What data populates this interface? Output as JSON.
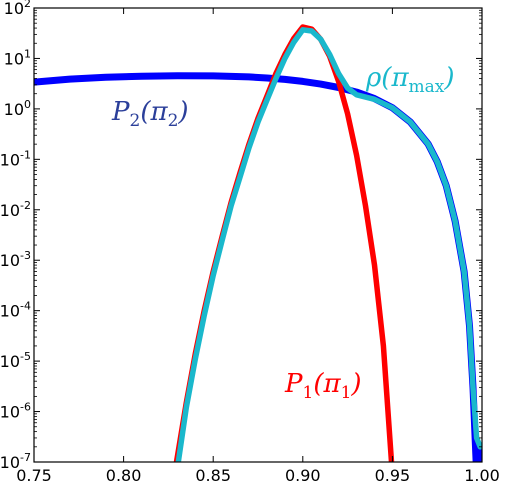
{
  "chart_data": {
    "type": "line",
    "title": "",
    "xlabel": "",
    "ylabel": "",
    "xlim": [
      0.75,
      1.0
    ],
    "ylim_log10": [
      -7,
      2
    ],
    "yscale": "log",
    "grid": false,
    "x_ticks": [
      {
        "value": 0.75,
        "label": "0.75"
      },
      {
        "value": 0.8,
        "label": "0.80"
      },
      {
        "value": 0.85,
        "label": "0.85"
      },
      {
        "value": 0.9,
        "label": "0.90"
      },
      {
        "value": 0.95,
        "label": "0.95"
      },
      {
        "value": 1.0,
        "label": "1.00"
      }
    ],
    "y_ticks": [
      {
        "exp": 2,
        "base": "10",
        "power": "2"
      },
      {
        "exp": 1,
        "base": "10",
        "power": "1"
      },
      {
        "exp": 0,
        "base": "10",
        "power": "0"
      },
      {
        "exp": -1,
        "base": "10",
        "power": "-1"
      },
      {
        "exp": -2,
        "base": "10",
        "power": "-2"
      },
      {
        "exp": -3,
        "base": "10",
        "power": "-3"
      },
      {
        "exp": -4,
        "base": "10",
        "power": "-4"
      },
      {
        "exp": -5,
        "base": "10",
        "power": "-5"
      },
      {
        "exp": -6,
        "base": "10",
        "power": "-6"
      },
      {
        "exp": -7,
        "base": "10",
        "power": "-7"
      }
    ],
    "series": [
      {
        "key": "p2",
        "color": "#0000ff",
        "label_main": "P",
        "label_sub": "2",
        "label_arg": "(π",
        "label_arg_sub": "2",
        "label_close": ")",
        "label_color": "#2b3f9a",
        "points": [
          [
            0.75,
            3.4
          ],
          [
            0.77,
            3.9
          ],
          [
            0.79,
            4.25
          ],
          [
            0.81,
            4.45
          ],
          [
            0.83,
            4.55
          ],
          [
            0.85,
            4.5
          ],
          [
            0.87,
            4.3
          ],
          [
            0.88,
            4.1
          ],
          [
            0.89,
            3.85
          ],
          [
            0.9,
            3.5
          ],
          [
            0.91,
            3.1
          ],
          [
            0.92,
            2.65
          ],
          [
            0.93,
            2.15
          ],
          [
            0.94,
            1.6
          ],
          [
            0.95,
            1.05
          ],
          [
            0.96,
            0.55
          ],
          [
            0.97,
            0.2
          ],
          [
            0.975,
            0.09
          ],
          [
            0.98,
            0.03
          ],
          [
            0.985,
            0.006
          ],
          [
            0.99,
            0.0006
          ],
          [
            0.993,
            5e-05
          ],
          [
            0.995,
            3e-06
          ],
          [
            0.997,
            6e-08
          ],
          [
            0.998,
            1e-07
          ],
          [
            0.999,
            2e-07
          ]
        ]
      },
      {
        "key": "p1",
        "color": "#ff0000",
        "label_main": "P",
        "label_sub": "1",
        "label_arg": "(π",
        "label_arg_sub": "1",
        "label_close": ")",
        "label_color": "#ff0000",
        "points": [
          [
            0.8295,
            1e-07
          ],
          [
            0.835,
            1.5e-06
          ],
          [
            0.84,
            1.4e-05
          ],
          [
            0.845,
            0.0001
          ],
          [
            0.85,
            0.0006
          ],
          [
            0.855,
            0.003
          ],
          [
            0.86,
            0.014
          ],
          [
            0.865,
            0.055
          ],
          [
            0.87,
            0.2
          ],
          [
            0.875,
            0.65
          ],
          [
            0.88,
            1.8
          ],
          [
            0.885,
            5
          ],
          [
            0.89,
            12
          ],
          [
            0.895,
            25
          ],
          [
            0.9,
            42
          ],
          [
            0.905,
            38
          ],
          [
            0.91,
            24
          ],
          [
            0.915,
            11
          ],
          [
            0.92,
            3.5
          ],
          [
            0.925,
            0.8
          ],
          [
            0.93,
            0.12
          ],
          [
            0.935,
            0.012
          ],
          [
            0.94,
            0.0008
          ],
          [
            0.945,
            2e-05
          ],
          [
            0.9495,
            1e-07
          ]
        ]
      },
      {
        "key": "rho",
        "color": "#1ab8cc",
        "label_main": "ρ",
        "label_sub": "",
        "label_arg": "(π",
        "label_arg_sub": "max",
        "label_close": ")",
        "label_color": "#1ab8cc",
        "points": [
          [
            0.8305,
            1e-07
          ],
          [
            0.835,
            1.2e-06
          ],
          [
            0.84,
            1.1e-05
          ],
          [
            0.845,
            8e-05
          ],
          [
            0.85,
            0.0005
          ],
          [
            0.855,
            0.0025
          ],
          [
            0.86,
            0.012
          ],
          [
            0.865,
            0.045
          ],
          [
            0.87,
            0.17
          ],
          [
            0.875,
            0.55
          ],
          [
            0.88,
            1.5
          ],
          [
            0.885,
            4
          ],
          [
            0.89,
            10
          ],
          [
            0.895,
            21
          ],
          [
            0.9,
            37
          ],
          [
            0.905,
            35
          ],
          [
            0.91,
            24
          ],
          [
            0.915,
            12
          ],
          [
            0.92,
            5
          ],
          [
            0.925,
            2.6
          ],
          [
            0.93,
            1.9
          ],
          [
            0.94,
            1.55
          ],
          [
            0.95,
            1.05
          ],
          [
            0.96,
            0.55
          ],
          [
            0.97,
            0.2
          ],
          [
            0.975,
            0.09
          ],
          [
            0.98,
            0.03
          ],
          [
            0.985,
            0.006
          ],
          [
            0.99,
            0.0006
          ],
          [
            0.993,
            5e-05
          ],
          [
            0.995,
            3e-06
          ],
          [
            0.997,
            3e-07
          ],
          [
            0.999,
            2e-07
          ]
        ]
      }
    ]
  }
}
